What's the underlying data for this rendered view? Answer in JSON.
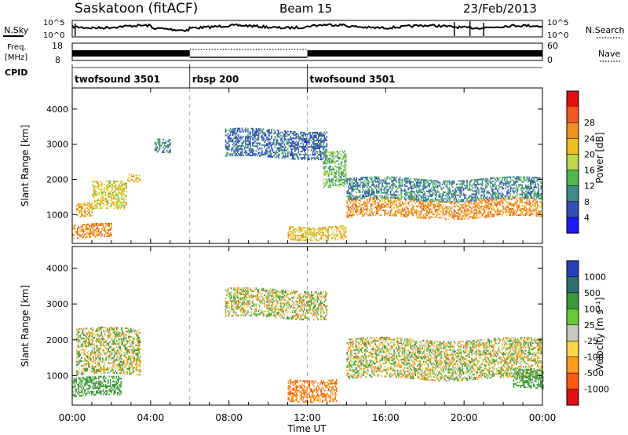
{
  "header": {
    "station": "Saskatoon (fitACF)",
    "beam": "Beam 15",
    "date": "23/Feb/2013"
  },
  "nsky": {
    "label": "N.Sky",
    "tick_top": "10^5",
    "tick_bottom": "10^0"
  },
  "nsearch": {
    "label": "N.Search",
    "tick_top": "10^5",
    "tick_bottom": "10^0"
  },
  "freq": {
    "label_line1": "Freq.",
    "label_line2": "[MHz]",
    "tick_top": "18",
    "tick_bottom": "8"
  },
  "nave": {
    "label": "Nave",
    "tick_top": "60",
    "tick_bottom": "0"
  },
  "cpid": {
    "label": "CPID",
    "segments": [
      {
        "name": "twofsound 3501",
        "start": 0,
        "end": 6
      },
      {
        "name": "rbsp 200",
        "start": 6,
        "end": 12
      },
      {
        "name": "twofsound 3501",
        "start": 12,
        "end": 24
      }
    ]
  },
  "chart_data": [
    {
      "type": "heatmap",
      "title": "Power",
      "ylabel": "Slant Range [km]",
      "xlim": [
        0,
        24
      ],
      "ylim": [
        180,
        4600
      ],
      "yticks": [
        "1000",
        "2000",
        "3000",
        "4000"
      ],
      "colorbar": {
        "label": "Power [dB]",
        "ticks": [
          "4",
          "8",
          "12",
          "16",
          "20",
          "24",
          "28"
        ],
        "colors": [
          "#1a1aff",
          "#2f4fb8",
          "#3e8a8a",
          "#4fb84f",
          "#bcd94a",
          "#f0c020",
          "#f09020",
          "#f05a20",
          "#e01010"
        ]
      },
      "echo_regions": [
        {
          "t_start": 0.2,
          "t_end": 1.0,
          "r_low": 900,
          "r_high": 1300,
          "dB": 24
        },
        {
          "t_start": 1.0,
          "t_end": 2.8,
          "r_low": 1100,
          "r_high": 1900,
          "dB": 20
        },
        {
          "t_start": 2.8,
          "t_end": 3.5,
          "r_low": 1900,
          "r_high": 2100,
          "dB": 22
        },
        {
          "t_start": 0.0,
          "t_end": 2.0,
          "r_low": 300,
          "r_high": 700,
          "dB": 26
        },
        {
          "t_start": 4.2,
          "t_end": 5.0,
          "r_low": 2800,
          "r_high": 3200,
          "dB": 10
        },
        {
          "t_start": 7.8,
          "t_end": 13.0,
          "r_low": 2600,
          "r_high": 3400,
          "dB": 8
        },
        {
          "t_start": 12.8,
          "t_end": 14.0,
          "r_low": 1800,
          "r_high": 2800,
          "dB": 14
        },
        {
          "t_start": 14.0,
          "t_end": 24.0,
          "r_low": 900,
          "r_high": 1400,
          "dB": 26
        },
        {
          "t_start": 14.0,
          "t_end": 24.0,
          "r_low": 1400,
          "r_high": 2000,
          "dB": 10
        },
        {
          "t_start": 11.0,
          "t_end": 14.0,
          "r_low": 300,
          "r_high": 700,
          "dB": 22
        }
      ]
    },
    {
      "type": "heatmap",
      "title": "Velocity",
      "xlabel": "Time UT",
      "ylabel": "Slant Range [km]",
      "xlim": [
        0,
        24
      ],
      "ylim": [
        180,
        4600
      ],
      "xticks": [
        "00:00",
        "04:00",
        "08:00",
        "12:00",
        "16:00",
        "20:00",
        "00:00"
      ],
      "yticks": [
        "1000",
        "2000",
        "3000",
        "4000"
      ],
      "colorbar": {
        "label": "Velocity [m s⁻¹]",
        "ticks": [
          "1000",
          "500",
          "100",
          "25",
          "-25",
          "-100",
          "-500",
          "-1000"
        ],
        "colors": [
          "#2040c0",
          "#2e7070",
          "#3a9a3a",
          "#66cc33",
          "#c8c8c0",
          "#ffd54a",
          "#ff9a1a",
          "#ff5a10",
          "#e01010"
        ]
      },
      "echo_regions": [
        {
          "t_start": 0.2,
          "t_end": 3.5,
          "r_low": 1000,
          "r_high": 2300,
          "v": 0
        },
        {
          "t_start": 0.0,
          "t_end": 2.5,
          "r_low": 400,
          "r_high": 900,
          "v": 150
        },
        {
          "t_start": 7.8,
          "t_end": 13.0,
          "r_low": 2600,
          "r_high": 3400,
          "v": 0
        },
        {
          "t_start": 11.0,
          "t_end": 13.5,
          "r_low": 300,
          "r_high": 900,
          "v": -300
        },
        {
          "t_start": 14.0,
          "t_end": 24.0,
          "r_low": 900,
          "r_high": 2000,
          "v": 0
        },
        {
          "t_start": 22.5,
          "t_end": 24.0,
          "r_low": 600,
          "r_high": 1100,
          "v": 150
        }
      ]
    }
  ]
}
